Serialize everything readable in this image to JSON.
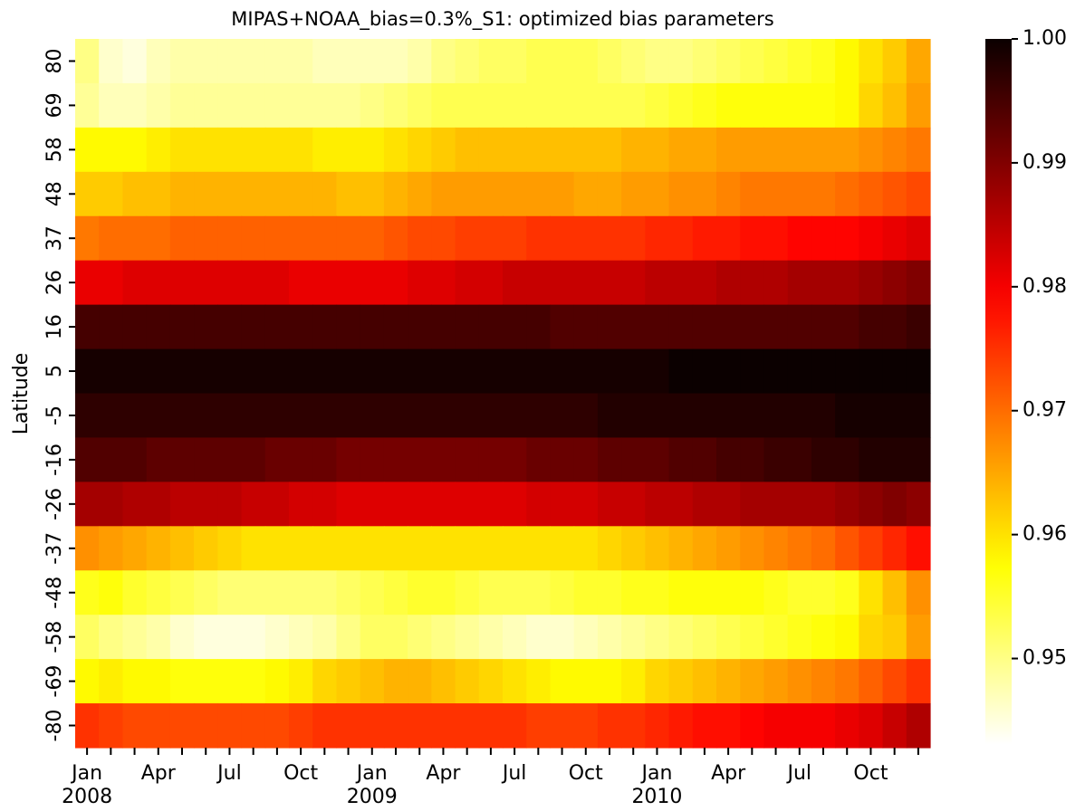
{
  "chart_data": {
    "type": "heatmap",
    "title": "MIPAS+NOAA_bias=0.3%_S1: optimized bias parameters",
    "y_label": "Latitude",
    "colormap": "hot_r",
    "x_categories": [
      "Jan\n2008",
      null,
      null,
      "Apr",
      null,
      null,
      "Jul",
      null,
      null,
      "Oct",
      null,
      null,
      "Jan\n2009",
      null,
      null,
      "Apr",
      null,
      null,
      "Jul",
      null,
      null,
      "Oct",
      null,
      null,
      "Jan\n2010",
      null,
      null,
      "Apr",
      null,
      null,
      "Jul",
      null,
      null,
      "Oct",
      null,
      null
    ],
    "y_categories": [
      "80",
      "69",
      "58",
      "48",
      "37",
      "26",
      "16",
      "5",
      "-5",
      "-16",
      "-26",
      "-37",
      "-48",
      "-58",
      "-69",
      "-80"
    ],
    "values": [
      [
        0.95,
        0.946,
        0.945,
        0.947,
        0.948,
        0.948,
        0.948,
        0.948,
        0.948,
        0.948,
        0.947,
        0.947,
        0.947,
        0.947,
        0.948,
        0.95,
        0.951,
        0.952,
        0.952,
        0.953,
        0.953,
        0.953,
        0.952,
        0.951,
        0.95,
        0.95,
        0.951,
        0.952,
        0.953,
        0.954,
        0.955,
        0.956,
        0.958,
        0.96,
        0.962,
        0.965
      ],
      [
        0.949,
        0.947,
        0.947,
        0.948,
        0.949,
        0.949,
        0.949,
        0.949,
        0.949,
        0.949,
        0.949,
        0.949,
        0.95,
        0.951,
        0.952,
        0.953,
        0.953,
        0.953,
        0.953,
        0.953,
        0.953,
        0.953,
        0.953,
        0.953,
        0.954,
        0.955,
        0.956,
        0.957,
        0.957,
        0.957,
        0.957,
        0.957,
        0.958,
        0.961,
        0.963,
        0.966
      ],
      [
        0.958,
        0.958,
        0.958,
        0.959,
        0.96,
        0.96,
        0.96,
        0.96,
        0.96,
        0.96,
        0.959,
        0.959,
        0.959,
        0.96,
        0.961,
        0.962,
        0.963,
        0.963,
        0.963,
        0.963,
        0.963,
        0.963,
        0.963,
        0.964,
        0.964,
        0.965,
        0.965,
        0.966,
        0.966,
        0.966,
        0.966,
        0.966,
        0.966,
        0.967,
        0.968,
        0.969
      ],
      [
        0.962,
        0.962,
        0.963,
        0.963,
        0.964,
        0.964,
        0.964,
        0.964,
        0.964,
        0.964,
        0.964,
        0.963,
        0.963,
        0.964,
        0.965,
        0.966,
        0.966,
        0.966,
        0.966,
        0.966,
        0.966,
        0.965,
        0.965,
        0.966,
        0.966,
        0.967,
        0.967,
        0.968,
        0.969,
        0.969,
        0.969,
        0.969,
        0.97,
        0.971,
        0.972,
        0.973
      ],
      [
        0.969,
        0.97,
        0.97,
        0.97,
        0.971,
        0.971,
        0.971,
        0.971,
        0.971,
        0.971,
        0.971,
        0.971,
        0.971,
        0.972,
        0.973,
        0.973,
        0.974,
        0.974,
        0.974,
        0.975,
        0.975,
        0.975,
        0.975,
        0.975,
        0.976,
        0.976,
        0.977,
        0.977,
        0.978,
        0.978,
        0.979,
        0.979,
        0.979,
        0.98,
        0.981,
        0.982
      ],
      [
        0.981,
        0.981,
        0.982,
        0.982,
        0.982,
        0.982,
        0.982,
        0.982,
        0.982,
        0.981,
        0.981,
        0.981,
        0.981,
        0.981,
        0.982,
        0.982,
        0.983,
        0.983,
        0.984,
        0.984,
        0.984,
        0.984,
        0.984,
        0.984,
        0.985,
        0.985,
        0.985,
        0.986,
        0.986,
        0.986,
        0.987,
        0.987,
        0.987,
        0.988,
        0.989,
        0.99
      ],
      [
        0.995,
        0.995,
        0.995,
        0.995,
        0.995,
        0.995,
        0.995,
        0.995,
        0.995,
        0.995,
        0.995,
        0.995,
        0.995,
        0.995,
        0.995,
        0.995,
        0.995,
        0.995,
        0.995,
        0.995,
        0.994,
        0.994,
        0.994,
        0.994,
        0.994,
        0.994,
        0.994,
        0.994,
        0.994,
        0.994,
        0.994,
        0.994,
        0.994,
        0.995,
        0.995,
        0.996
      ],
      [
        0.999,
        0.999,
        0.999,
        0.999,
        0.999,
        0.999,
        0.999,
        0.999,
        0.999,
        0.999,
        0.999,
        0.999,
        0.999,
        0.999,
        0.999,
        0.999,
        0.999,
        0.999,
        0.999,
        0.999,
        0.999,
        0.999,
        0.999,
        0.999,
        0.999,
        1.0,
        1.0,
        1.0,
        1.0,
        1.0,
        1.0,
        1.0,
        1.0,
        1.0,
        1.0,
        1.0
      ],
      [
        0.997,
        0.997,
        0.997,
        0.997,
        0.997,
        0.997,
        0.997,
        0.997,
        0.997,
        0.997,
        0.997,
        0.997,
        0.997,
        0.997,
        0.997,
        0.997,
        0.997,
        0.997,
        0.997,
        0.997,
        0.997,
        0.997,
        0.998,
        0.998,
        0.998,
        0.998,
        0.998,
        0.998,
        0.998,
        0.998,
        0.998,
        0.998,
        0.999,
        0.999,
        0.999,
        0.999
      ],
      [
        0.994,
        0.994,
        0.994,
        0.993,
        0.993,
        0.993,
        0.993,
        0.993,
        0.992,
        0.992,
        0.992,
        0.991,
        0.991,
        0.991,
        0.991,
        0.991,
        0.991,
        0.991,
        0.991,
        0.992,
        0.992,
        0.992,
        0.993,
        0.993,
        0.993,
        0.994,
        0.994,
        0.995,
        0.995,
        0.996,
        0.996,
        0.997,
        0.997,
        0.998,
        0.998,
        0.998
      ],
      [
        0.987,
        0.987,
        0.986,
        0.986,
        0.985,
        0.985,
        0.985,
        0.984,
        0.984,
        0.983,
        0.983,
        0.982,
        0.982,
        0.982,
        0.982,
        0.982,
        0.982,
        0.982,
        0.982,
        0.983,
        0.983,
        0.983,
        0.984,
        0.984,
        0.985,
        0.985,
        0.986,
        0.986,
        0.987,
        0.987,
        0.987,
        0.987,
        0.988,
        0.989,
        0.99,
        0.989
      ],
      [
        0.967,
        0.966,
        0.965,
        0.964,
        0.963,
        0.962,
        0.961,
        0.96,
        0.96,
        0.96,
        0.96,
        0.96,
        0.96,
        0.96,
        0.96,
        0.96,
        0.96,
        0.96,
        0.96,
        0.96,
        0.96,
        0.96,
        0.961,
        0.962,
        0.963,
        0.964,
        0.965,
        0.966,
        0.967,
        0.968,
        0.969,
        0.97,
        0.972,
        0.974,
        0.976,
        0.978
      ],
      [
        0.956,
        0.957,
        0.955,
        0.954,
        0.953,
        0.952,
        0.951,
        0.951,
        0.951,
        0.951,
        0.951,
        0.952,
        0.953,
        0.954,
        0.955,
        0.955,
        0.954,
        0.953,
        0.953,
        0.953,
        0.954,
        0.955,
        0.955,
        0.956,
        0.956,
        0.957,
        0.957,
        0.957,
        0.957,
        0.956,
        0.955,
        0.955,
        0.956,
        0.96,
        0.963,
        0.967
      ],
      [
        0.952,
        0.95,
        0.949,
        0.948,
        0.946,
        0.945,
        0.945,
        0.945,
        0.946,
        0.947,
        0.948,
        0.95,
        0.952,
        0.952,
        0.951,
        0.95,
        0.949,
        0.948,
        0.947,
        0.946,
        0.946,
        0.947,
        0.948,
        0.949,
        0.95,
        0.951,
        0.952,
        0.953,
        0.954,
        0.955,
        0.956,
        0.957,
        0.958,
        0.961,
        0.962,
        0.966
      ],
      [
        0.958,
        0.959,
        0.958,
        0.958,
        0.957,
        0.957,
        0.957,
        0.957,
        0.958,
        0.959,
        0.961,
        0.962,
        0.963,
        0.964,
        0.964,
        0.963,
        0.962,
        0.961,
        0.96,
        0.959,
        0.958,
        0.958,
        0.958,
        0.959,
        0.961,
        0.962,
        0.963,
        0.964,
        0.965,
        0.966,
        0.967,
        0.968,
        0.969,
        0.971,
        0.973,
        0.975
      ],
      [
        0.975,
        0.974,
        0.973,
        0.973,
        0.973,
        0.973,
        0.973,
        0.973,
        0.973,
        0.974,
        0.975,
        0.975,
        0.975,
        0.975,
        0.975,
        0.975,
        0.975,
        0.975,
        0.975,
        0.974,
        0.974,
        0.974,
        0.975,
        0.975,
        0.976,
        0.977,
        0.978,
        0.978,
        0.979,
        0.98,
        0.98,
        0.98,
        0.981,
        0.982,
        0.984,
        0.986
      ]
    ],
    "zlim": [
      0.9431,
      1.0
    ],
    "zticks": [
      0.95,
      0.96,
      0.97,
      0.98,
      0.99,
      {
        "value": 1.0,
        "label": "1.00"
      }
    ]
  }
}
